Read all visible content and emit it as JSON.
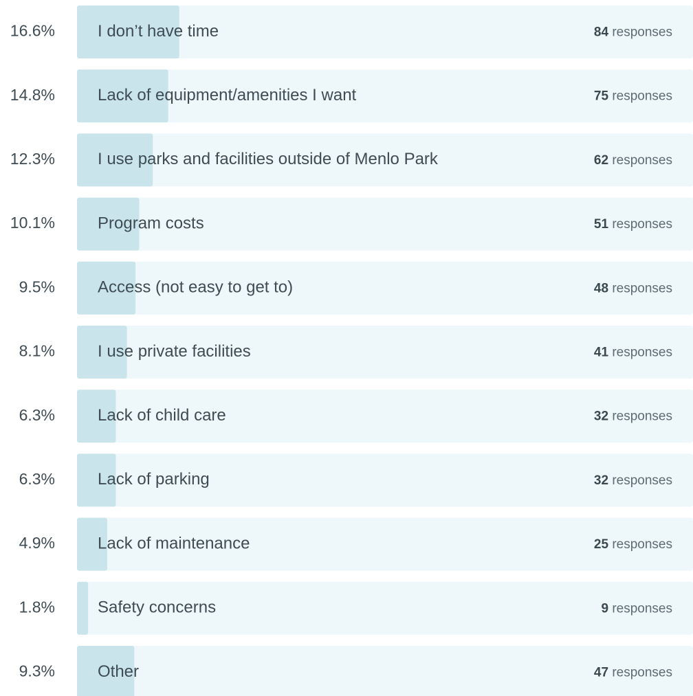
{
  "chart_data": {
    "type": "bar",
    "categories": [
      "I don’t have time",
      "Lack of equipment/amenities I want",
      "I use parks and facilities outside of Menlo Park",
      "Program costs",
      "Access (not easy to get to)",
      "I use private facilities",
      "Lack of child care",
      "Lack of parking",
      "Lack of maintenance",
      "Safety concerns",
      "Other"
    ],
    "values": [
      16.6,
      14.8,
      12.3,
      10.1,
      9.5,
      8.1,
      6.3,
      6.3,
      4.9,
      1.8,
      9.3
    ],
    "value_labels": [
      "16.6%",
      "14.8%",
      "12.3%",
      "10.1%",
      "9.5%",
      "8.1%",
      "6.3%",
      "6.3%",
      "4.9%",
      "1.8%",
      "9.3%"
    ],
    "responses": [
      84,
      75,
      62,
      51,
      48,
      41,
      32,
      32,
      25,
      9,
      47
    ],
    "responses_label": "responses",
    "xlim": [
      0,
      100
    ],
    "color": "#c9e5eb",
    "track_color": "#eef7f9"
  }
}
